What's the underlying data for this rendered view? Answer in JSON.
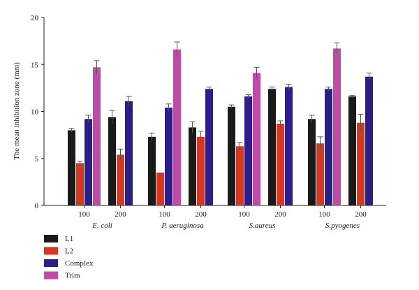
{
  "chart_data": {
    "type": "bar",
    "ylabel": "The mean inhibition zone (mm)",
    "ylim": [
      0,
      20
    ],
    "yticks": [
      "0",
      "5",
      "10",
      "15",
      "20"
    ],
    "grid": false,
    "legend_position": "bottom-left",
    "groups": [
      {
        "name": "E. coli",
        "categories": [
          "100",
          "200"
        ]
      },
      {
        "name": "P. aeruginosa",
        "categories": [
          "100",
          "200"
        ]
      },
      {
        "name": "S.aureus",
        "categories": [
          "100",
          "200"
        ]
      },
      {
        "name": "S.pyogenes",
        "categories": [
          "100",
          "200"
        ]
      }
    ],
    "series": [
      {
        "name": "L1",
        "color": "#1a1a1a",
        "values": [
          8.0,
          9.4,
          7.3,
          8.3,
          10.5,
          12.4,
          9.2,
          11.6
        ],
        "errors": [
          0.2,
          0.7,
          0.4,
          0.6,
          0.2,
          0.2,
          0.4,
          0.1
        ]
      },
      {
        "name": "L2",
        "color": "#d7371e",
        "values": [
          4.5,
          5.4,
          3.5,
          7.3,
          6.3,
          8.7,
          6.6,
          8.8
        ],
        "errors": [
          0.2,
          0.6,
          0.0,
          0.6,
          0.4,
          0.3,
          0.7,
          0.9
        ]
      },
      {
        "name": "Complex",
        "color": "#2b1d8c",
        "values": [
          9.2,
          11.1,
          10.4,
          12.4,
          11.6,
          12.6,
          12.4,
          13.7
        ],
        "errors": [
          0.4,
          0.5,
          0.4,
          0.2,
          0.2,
          0.3,
          0.2,
          0.4
        ]
      },
      {
        "name": "Trim",
        "color": "#c04aa8",
        "values": [
          14.7,
          null,
          16.6,
          null,
          14.1,
          null,
          16.7,
          null
        ],
        "errors": [
          0.7,
          null,
          0.8,
          null,
          0.6,
          null,
          0.6,
          null
        ]
      }
    ]
  }
}
